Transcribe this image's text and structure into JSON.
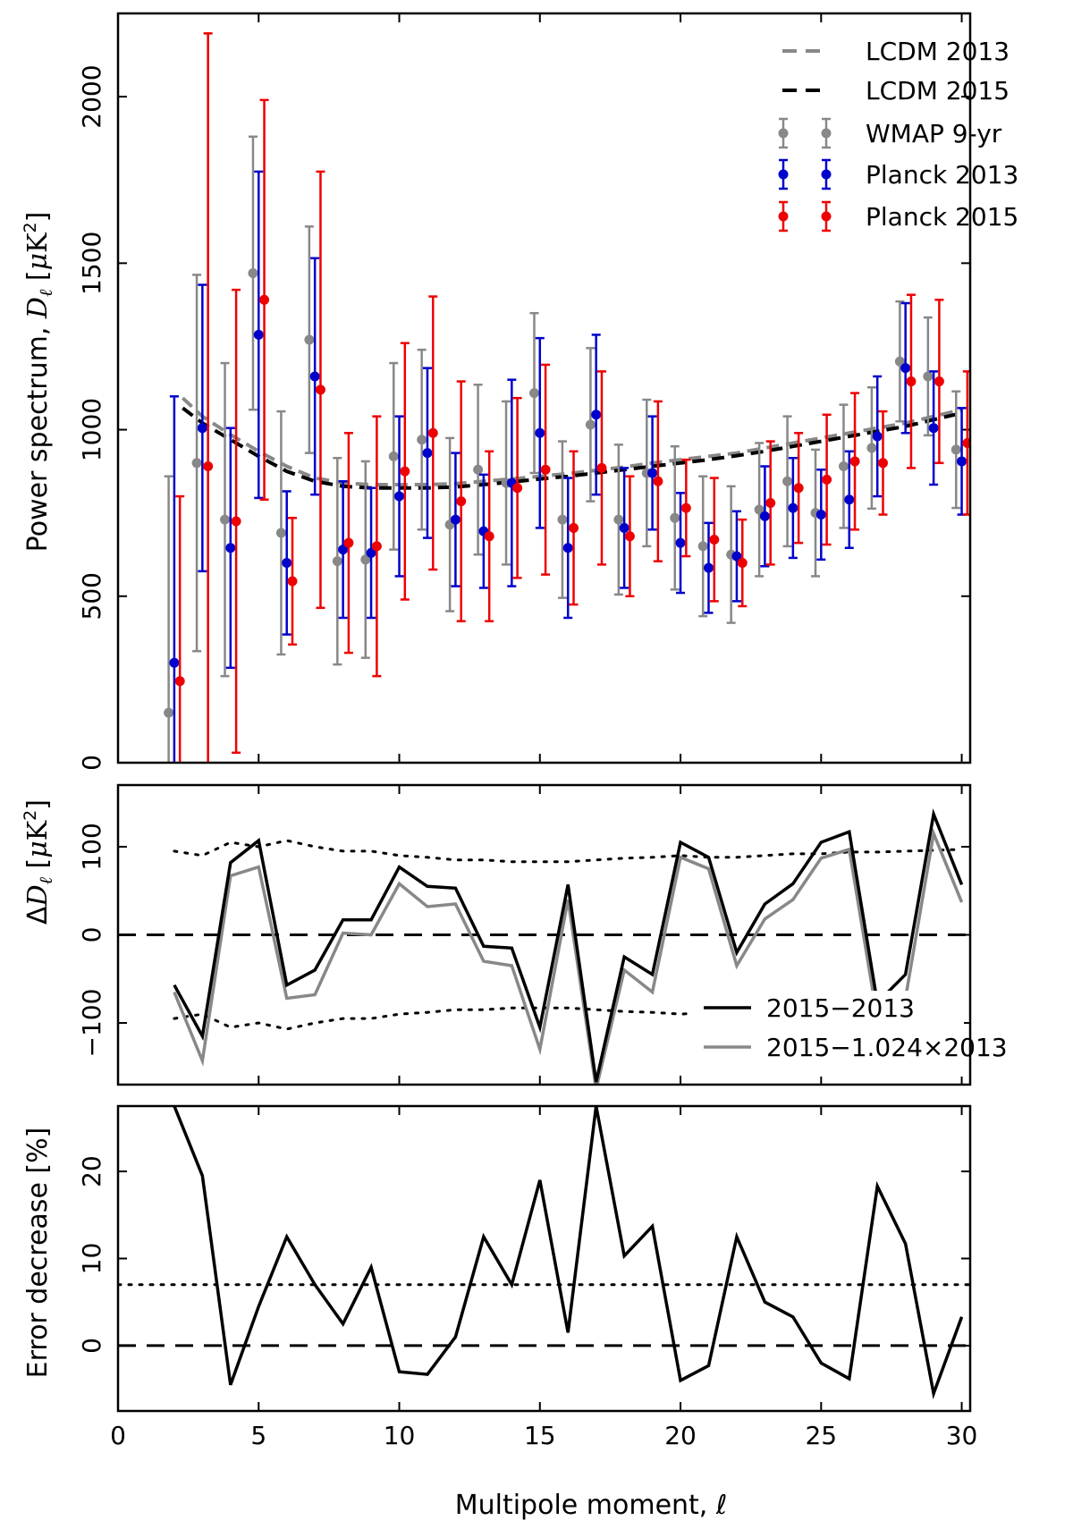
{
  "figure": {
    "xlabel": "Multipole moment, ℓ",
    "x_ticks": [
      "0",
      "5",
      "10",
      "15",
      "20",
      "25",
      "30"
    ]
  },
  "chart_data": [
    {
      "type": "scatter",
      "panel": "top",
      "ylabel": "Power spectrum, Dℓ [μK²]",
      "ylabel_parts": {
        "main": "Power spectrum, ",
        "sym": "D",
        "sub": "ℓ",
        "unit_pre": " [",
        "mu": "μ",
        "K": "K",
        "sup": "2",
        "close": "]"
      },
      "xlim": [
        0,
        30.3
      ],
      "ylim": [
        0,
        2250
      ],
      "y_ticks": [
        0,
        500,
        1000,
        1500,
        2000
      ],
      "x": [
        2,
        3,
        4,
        5,
        6,
        7,
        8,
        9,
        10,
        11,
        12,
        13,
        14,
        15,
        16,
        17,
        18,
        19,
        20,
        21,
        22,
        23,
        24,
        25,
        26,
        27,
        28,
        29,
        30
      ],
      "models": [
        {
          "name": "LCDM 2013",
          "color": "#888888",
          "ell": [
            2.3,
            3,
            4,
            5,
            6,
            7,
            8,
            9,
            10,
            11,
            12,
            13,
            14,
            15,
            16,
            17,
            18,
            19,
            20,
            21,
            22,
            23,
            24,
            25,
            26,
            27,
            28,
            29,
            30
          ],
          "values": [
            1095,
            1040,
            985,
            935,
            890,
            855,
            840,
            835,
            835,
            835,
            838,
            845,
            852,
            860,
            868,
            878,
            888,
            900,
            910,
            920,
            930,
            945,
            960,
            975,
            990,
            1005,
            1020,
            1040,
            1060
          ]
        },
        {
          "name": "LCDM 2015",
          "color": "#000000",
          "ell": [
            2.3,
            3,
            4,
            5,
            6,
            7,
            8,
            9,
            10,
            11,
            12,
            13,
            14,
            15,
            16,
            17,
            18,
            19,
            20,
            21,
            22,
            23,
            24,
            25,
            26,
            27,
            28,
            29,
            30
          ],
          "values": [
            1065,
            1020,
            970,
            920,
            875,
            845,
            830,
            825,
            825,
            825,
            828,
            835,
            843,
            852,
            860,
            870,
            880,
            890,
            900,
            910,
            922,
            935,
            950,
            965,
            980,
            995,
            1010,
            1030,
            1050
          ]
        }
      ],
      "series": [
        {
          "name": "WMAP 9-yr",
          "color": "#888888",
          "offset": -0.2,
          "values": [
            150,
            900,
            730,
            1470,
            690,
            1270,
            605,
            610,
            920,
            970,
            715,
            880,
            840,
            1110,
            730,
            1015,
            730,
            870,
            735,
            650,
            625,
            760,
            845,
            750,
            890,
            945,
            1205,
            1160,
            940
          ],
          "errors": [
            710,
            565,
            470,
            410,
            365,
            340,
            310,
            295,
            280,
            270,
            260,
            255,
            245,
            240,
            235,
            230,
            225,
            220,
            215,
            210,
            205,
            200,
            195,
            190,
            185,
            182,
            180,
            177,
            175
          ]
        },
        {
          "name": "Planck 2013",
          "color": "#0000cc",
          "offset": 0,
          "values": [
            300,
            1005,
            645,
            1285,
            600,
            1160,
            640,
            630,
            800,
            930,
            730,
            695,
            840,
            990,
            645,
            1045,
            705,
            870,
            660,
            585,
            620,
            740,
            765,
            745,
            790,
            980,
            1185,
            1005,
            905
          ],
          "errors": [
            800,
            430,
            360,
            490,
            215,
            355,
            205,
            195,
            240,
            255,
            200,
            170,
            310,
            285,
            210,
            240,
            180,
            170,
            150,
            135,
            135,
            150,
            150,
            135,
            145,
            180,
            195,
            170,
            160
          ]
        },
        {
          "name": "Planck 2015",
          "color": "#ee0000",
          "offset": 0.2,
          "values": [
            245,
            890,
            725,
            1390,
            545,
            1120,
            660,
            650,
            875,
            990,
            785,
            680,
            825,
            880,
            705,
            885,
            680,
            845,
            765,
            670,
            600,
            780,
            825,
            850,
            905,
            900,
            1145,
            1145,
            960
          ],
          "errors": [
            555,
            1300,
            695,
            600,
            190,
            655,
            330,
            390,
            385,
            410,
            360,
            255,
            270,
            315,
            230,
            290,
            180,
            240,
            145,
            185,
            130,
            185,
            165,
            195,
            205,
            155,
            260,
            245,
            215
          ]
        }
      ],
      "legend_items": [
        "LCDM 2013",
        "LCDM 2015",
        "WMAP 9-yr",
        "Planck 2013",
        "Planck 2015"
      ],
      "legend_placement": "top-right"
    },
    {
      "type": "line",
      "panel": "middle",
      "ylabel": "ΔDℓ [μK²]",
      "ylabel_parts": {
        "delta": "Δ",
        "sym": "D",
        "sub": "ℓ",
        "unit_pre": " [",
        "mu": "μ",
        "K": "K",
        "sup": "2",
        "close": "]"
      },
      "xlim": [
        0,
        30.3
      ],
      "ylim": [
        -170,
        170
      ],
      "y_ticks": [
        -100,
        0,
        100
      ],
      "y_tick_labels": [
        "−100",
        "0",
        "100"
      ],
      "x": [
        2,
        3,
        4,
        5,
        6,
        7,
        8,
        9,
        10,
        11,
        12,
        13,
        14,
        15,
        16,
        17,
        18,
        19,
        20,
        21,
        22,
        23,
        24,
        25,
        26,
        27,
        28,
        29,
        30
      ],
      "series": [
        {
          "name": "2015−2013",
          "color": "#000000",
          "values": [
            -57,
            -115,
            82,
            107,
            -57,
            -40,
            17,
            17,
            77,
            55,
            53,
            -13,
            -15,
            -105,
            57,
            -167,
            -25,
            -45,
            105,
            88,
            -20,
            35,
            58,
            105,
            117,
            -77,
            -45,
            137,
            57
          ]
        },
        {
          "name": "2015−1.024×2013",
          "color": "#888888",
          "values": [
            -65,
            -143,
            67,
            77,
            -72,
            -68,
            2,
            0,
            58,
            32,
            35,
            -30,
            -35,
            -130,
            40,
            -175,
            -40,
            -65,
            88,
            75,
            -35,
            18,
            40,
            87,
            97,
            -95,
            -72,
            115,
            37
          ]
        }
      ],
      "error_envelope": {
        "x": [
          2,
          3,
          4,
          5,
          6,
          7,
          8,
          9,
          10,
          11,
          12,
          13,
          14,
          15,
          16,
          17,
          18,
          19,
          20,
          21,
          22,
          23,
          24,
          25,
          26,
          27,
          28,
          29,
          30
        ],
        "values": [
          95,
          90,
          105,
          100,
          107,
          100,
          95,
          95,
          90,
          88,
          85,
          85,
          83,
          83,
          83,
          85,
          87,
          88,
          90,
          88,
          88,
          90,
          92,
          92,
          94,
          94,
          95,
          96,
          97
        ]
      },
      "legend_items": [
        "2015−2013",
        "2015−1.024×2013"
      ],
      "legend_placement": "lower-right"
    },
    {
      "type": "line",
      "panel": "bottom",
      "ylabel": "Error decrease [%]",
      "xlim": [
        0,
        30.3
      ],
      "ylim": [
        -7.5,
        27.5
      ],
      "y_ticks": [
        0,
        10,
        20
      ],
      "x": [
        2,
        3,
        4,
        5,
        6,
        7,
        8,
        9,
        10,
        11,
        12,
        13,
        14,
        15,
        16,
        17,
        18,
        19,
        20,
        21,
        22,
        23,
        24,
        25,
        26,
        27,
        28,
        29,
        30
      ],
      "values": [
        27.5,
        19.5,
        -4.5,
        4.5,
        12.5,
        7,
        2.5,
        9,
        -3,
        -3.3,
        1,
        12.5,
        7,
        19,
        1.5,
        27.5,
        10.3,
        13.7,
        -4,
        -2.3,
        12.5,
        5,
        3.3,
        -2,
        -3.8,
        18.3,
        11.7,
        -5.5,
        3.3
      ],
      "mean_line": 7
    }
  ]
}
